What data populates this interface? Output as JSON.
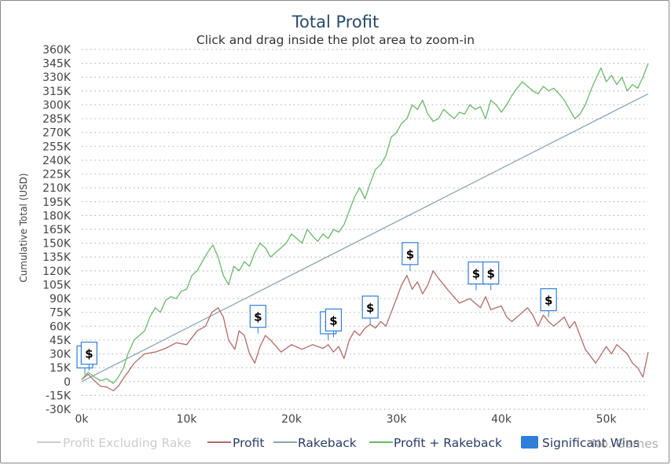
{
  "chart_data": {
    "type": "line",
    "title": "Total Profit",
    "subtitle": "Click and drag inside the plot area to zoom-in",
    "ylabel": "Cumulative Total (USD)",
    "xlabel": "No. Games",
    "xlim": [
      0,
      54000
    ],
    "ylim": [
      -30000,
      360000
    ],
    "x_ticks": [
      0,
      10000,
      20000,
      30000,
      40000,
      50000
    ],
    "x_tick_labels": [
      "0k",
      "10k",
      "20k",
      "30k",
      "40k",
      "50k"
    ],
    "y_ticks": [
      -30000,
      -15000,
      0,
      15000,
      30000,
      45000,
      60000,
      75000,
      90000,
      105000,
      120000,
      135000,
      150000,
      165000,
      180000,
      195000,
      210000,
      225000,
      240000,
      255000,
      270000,
      285000,
      300000,
      315000,
      330000,
      345000,
      360000
    ],
    "y_tick_labels": [
      "-30K",
      "-15K",
      "0",
      "15K",
      "30K",
      "45K",
      "60K",
      "75K",
      "90K",
      "105K",
      "120K",
      "135K",
      "150K",
      "165K",
      "180K",
      "195K",
      "210K",
      "225K",
      "240K",
      "255K",
      "270K",
      "285K",
      "300K",
      "315K",
      "330K",
      "345K",
      "360K"
    ],
    "grid": true,
    "legend_position": "bottom",
    "series": [
      {
        "name": "Profit Excluding Rake",
        "color": "#cccccc",
        "visible": false,
        "x": [],
        "values": []
      },
      {
        "name": "Profit",
        "color": "#b56a6a",
        "visible": true,
        "x": [
          0,
          600,
          1200,
          1800,
          2400,
          3000,
          3500,
          4000,
          4400,
          5000,
          6000,
          7000,
          8000,
          9000,
          10000,
          11000,
          11800,
          12400,
          13000,
          13500,
          14000,
          14600,
          15000,
          15500,
          16000,
          16500,
          17000,
          17500,
          18000,
          19000,
          20000,
          21000,
          22000,
          23000,
          23500,
          24000,
          24500,
          25000,
          25500,
          26000,
          26500,
          27000,
          27500,
          28000,
          28500,
          29000,
          29500,
          30000,
          30500,
          31000,
          31500,
          32000,
          32500,
          33000,
          33500,
          34000,
          35000,
          36000,
          37000,
          38000,
          38500,
          39000,
          40000,
          40500,
          41000,
          42000,
          42500,
          43000,
          43500,
          44000,
          44500,
          45000,
          46000,
          46500,
          47000,
          47500,
          48000,
          49000,
          50000,
          50500,
          51000,
          52000,
          52500,
          53000,
          53500,
          54000
        ],
        "values": [
          2000,
          8000,
          1000,
          -5000,
          -6000,
          -10000,
          -5000,
          4000,
          10000,
          20000,
          30000,
          32000,
          36000,
          42000,
          40000,
          55000,
          60000,
          75000,
          80000,
          70000,
          45000,
          35000,
          55000,
          50000,
          30000,
          20000,
          38000,
          50000,
          45000,
          32000,
          40000,
          35000,
          40000,
          36000,
          40000,
          32000,
          38000,
          25000,
          45000,
          55000,
          50000,
          58000,
          62000,
          58000,
          65000,
          60000,
          75000,
          90000,
          105000,
          115000,
          100000,
          108000,
          95000,
          105000,
          120000,
          112000,
          98000,
          85000,
          90000,
          80000,
          92000,
          78000,
          82000,
          70000,
          65000,
          75000,
          80000,
          72000,
          60000,
          72000,
          65000,
          60000,
          70000,
          58000,
          65000,
          50000,
          35000,
          20000,
          38000,
          30000,
          40000,
          30000,
          20000,
          15000,
          5000,
          32000
        ]
      },
      {
        "name": "Rakeback",
        "color": "#8ea4b4",
        "visible": true,
        "x": [
          0,
          54000
        ],
        "values": [
          0,
          312000
        ]
      },
      {
        "name": "Profit + Rakeback",
        "color": "#6ab86a",
        "visible": true,
        "x": [
          0,
          600,
          1200,
          1800,
          2400,
          3000,
          3500,
          4000,
          4400,
          5000,
          5500,
          6000,
          6500,
          7000,
          7500,
          8000,
          8500,
          9000,
          9500,
          10000,
          10500,
          11000,
          11500,
          12000,
          12500,
          13000,
          13500,
          14000,
          14500,
          15000,
          15500,
          16000,
          16500,
          17000,
          17500,
          18000,
          18500,
          19000,
          19500,
          20000,
          20500,
          21000,
          21500,
          22000,
          22500,
          23000,
          23500,
          24000,
          24500,
          25000,
          25500,
          26000,
          26500,
          27000,
          27500,
          28000,
          28500,
          29000,
          29500,
          30000,
          30500,
          31000,
          31500,
          32000,
          32500,
          33000,
          33500,
          34000,
          34500,
          35000,
          35500,
          36000,
          36500,
          37000,
          37500,
          38000,
          38500,
          39000,
          39500,
          40000,
          40500,
          41000,
          41500,
          42000,
          42500,
          43000,
          43500,
          44000,
          44500,
          45000,
          45500,
          46000,
          46500,
          47000,
          47500,
          48000,
          48500,
          49000,
          49500,
          50000,
          50500,
          51000,
          51500,
          52000,
          52500,
          53000,
          53500,
          54000
        ],
        "values": [
          2000,
          10000,
          5000,
          1000,
          3000,
          -2000,
          5000,
          15000,
          30000,
          45000,
          50000,
          55000,
          70000,
          80000,
          75000,
          88000,
          92000,
          90000,
          98000,
          100000,
          115000,
          120000,
          130000,
          140000,
          148000,
          135000,
          115000,
          105000,
          125000,
          120000,
          130000,
          125000,
          140000,
          150000,
          145000,
          135000,
          140000,
          145000,
          150000,
          160000,
          155000,
          150000,
          165000,
          158000,
          152000,
          160000,
          155000,
          165000,
          162000,
          170000,
          185000,
          200000,
          210000,
          198000,
          215000,
          230000,
          235000,
          245000,
          265000,
          270000,
          280000,
          285000,
          300000,
          295000,
          305000,
          290000,
          282000,
          285000,
          295000,
          290000,
          285000,
          292000,
          290000,
          300000,
          295000,
          298000,
          285000,
          305000,
          300000,
          292000,
          300000,
          310000,
          318000,
          325000,
          320000,
          315000,
          312000,
          320000,
          315000,
          318000,
          312000,
          305000,
          295000,
          285000,
          290000,
          300000,
          315000,
          328000,
          340000,
          325000,
          332000,
          322000,
          330000,
          315000,
          322000,
          318000,
          330000,
          345000
        ]
      },
      {
        "name": "Significant Wins",
        "color": "#2f7ed8",
        "visible": true,
        "x": [],
        "values": []
      }
    ],
    "flags": [
      {
        "x": 300,
        "y": 8000,
        "text": "$"
      },
      {
        "x": 700,
        "y": 12000,
        "text": "$"
      },
      {
        "x": 16800,
        "y": 52000,
        "text": "$"
      },
      {
        "x": 23500,
        "y": 45000,
        "text": "$"
      },
      {
        "x": 24000,
        "y": 48000,
        "text": "$"
      },
      {
        "x": 27500,
        "y": 62000,
        "text": "$"
      },
      {
        "x": 31300,
        "y": 120000,
        "text": "$"
      },
      {
        "x": 37600,
        "y": 99000,
        "text": "$"
      },
      {
        "x": 39000,
        "y": 99000,
        "text": "$"
      },
      {
        "x": 44500,
        "y": 70000,
        "text": "$"
      }
    ]
  }
}
